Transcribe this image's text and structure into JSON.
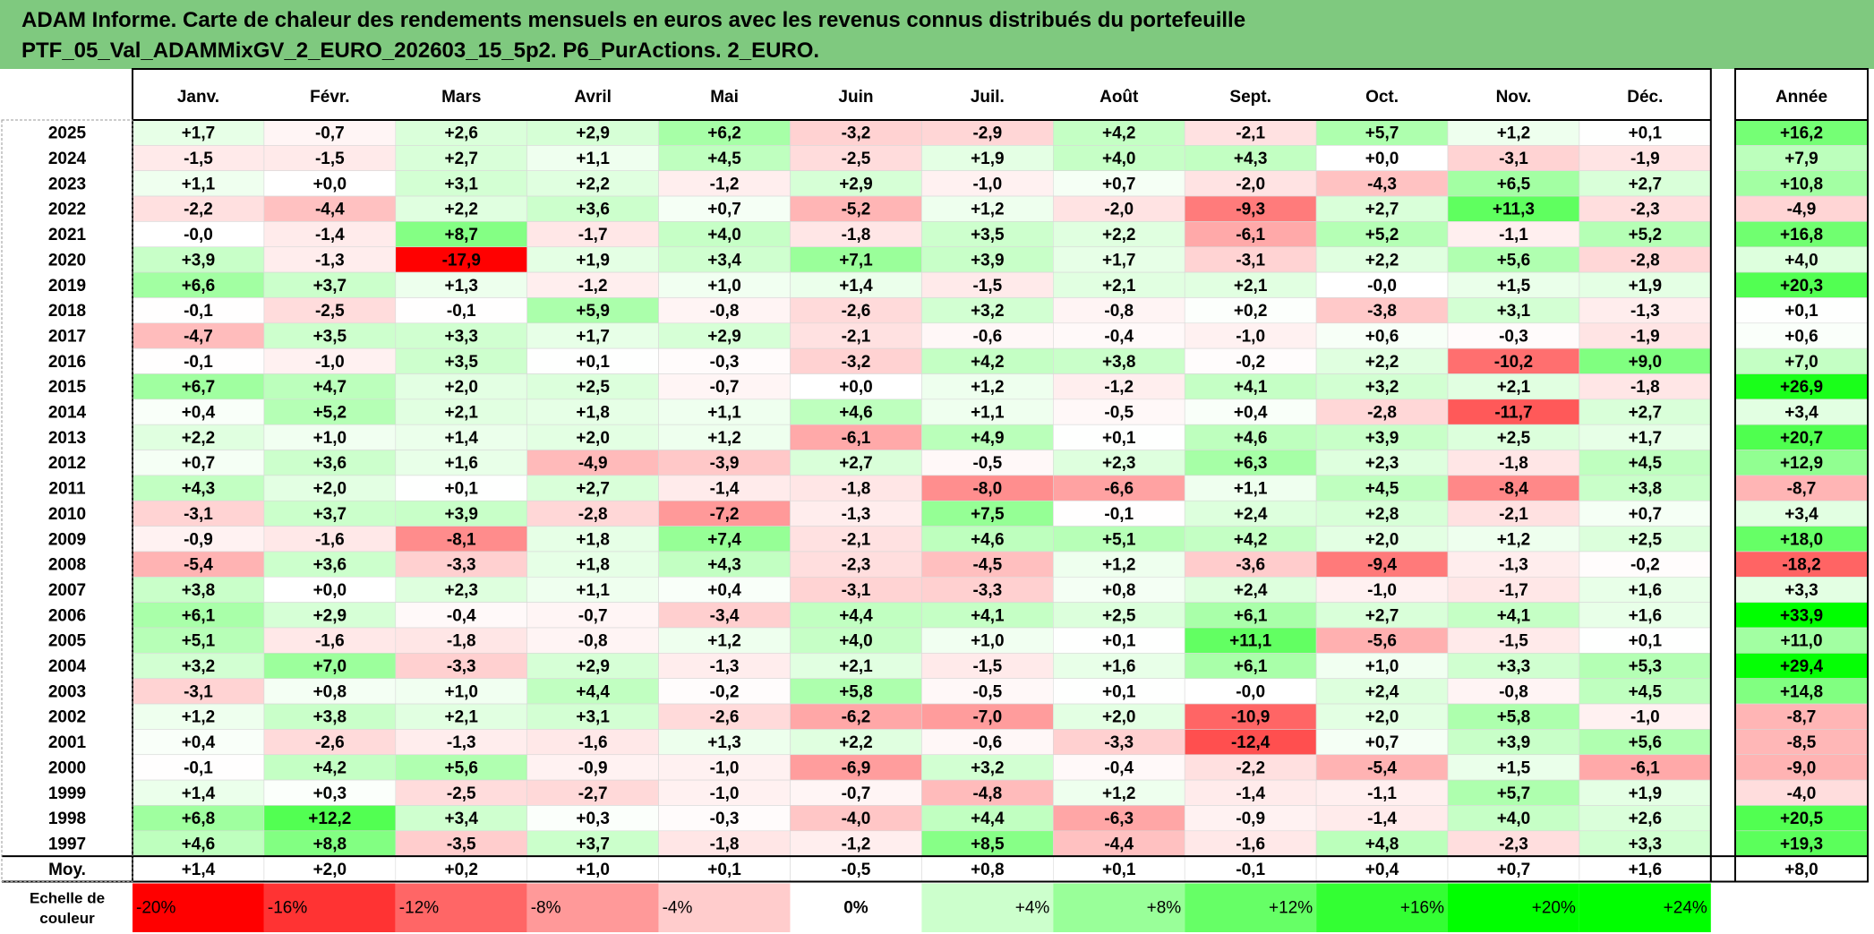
{
  "title": {
    "line1": "ADAM Informe. Carte de chaleur des rendements mensuels en euros avec les revenus connus distribués du portefeuille",
    "line2": "PTF_05_Val_ADAMMixGV_2_EURO_202603_15_5p2. P6_PurActions. 2_EURO."
  },
  "chart_data": {
    "type": "heatmap",
    "columns": [
      "Janv.",
      "Févr.",
      "Mars",
      "Avril",
      "Mai",
      "Juin",
      "Juil.",
      "Août",
      "Sept.",
      "Oct.",
      "Nov.",
      "Déc."
    ],
    "year_column": "Année",
    "rows": [
      {
        "year": "2025",
        "values": [
          "+1,7",
          "-0,7",
          "+2,6",
          "+2,9",
          "+6,2",
          "-3,2",
          "-2,9",
          "+4,2",
          "-2,1",
          "+5,7",
          "+1,2",
          "+0,1"
        ],
        "annual": "+16,2"
      },
      {
        "year": "2024",
        "values": [
          "-1,5",
          "-1,5",
          "+2,7",
          "+1,1",
          "+4,5",
          "-2,5",
          "+1,9",
          "+4,0",
          "+4,3",
          "+0,0",
          "-3,1",
          "-1,9"
        ],
        "annual": "+7,9"
      },
      {
        "year": "2023",
        "values": [
          "+1,1",
          "+0,0",
          "+3,1",
          "+2,2",
          "-1,2",
          "+2,9",
          "-1,0",
          "+0,7",
          "-2,0",
          "-4,3",
          "+6,5",
          "+2,7"
        ],
        "annual": "+10,8"
      },
      {
        "year": "2022",
        "values": [
          "-2,2",
          "-4,4",
          "+2,2",
          "+3,6",
          "+0,7",
          "-5,2",
          "+1,2",
          "-2,0",
          "-9,3",
          "+2,7",
          "+11,3",
          "-2,3"
        ],
        "annual": "-4,9"
      },
      {
        "year": "2021",
        "values": [
          "-0,0",
          "-1,4",
          "+8,7",
          "-1,7",
          "+4,0",
          "-1,8",
          "+3,5",
          "+2,2",
          "-6,1",
          "+5,2",
          "-1,1",
          "+5,2"
        ],
        "annual": "+16,8"
      },
      {
        "year": "2020",
        "values": [
          "+3,9",
          "-1,3",
          "-17,9",
          "+1,9",
          "+3,4",
          "+7,1",
          "+3,9",
          "+1,7",
          "-3,1",
          "+2,2",
          "+5,6",
          "-2,8"
        ],
        "annual": "+4,0"
      },
      {
        "year": "2019",
        "values": [
          "+6,6",
          "+3,7",
          "+1,3",
          "-1,2",
          "+1,0",
          "+1,4",
          "-1,5",
          "+2,1",
          "+2,1",
          "-0,0",
          "+1,5",
          "+1,9"
        ],
        "annual": "+20,3"
      },
      {
        "year": "2018",
        "values": [
          "-0,1",
          "-2,5",
          "-0,1",
          "+5,9",
          "-0,8",
          "-2,6",
          "+3,2",
          "-0,8",
          "+0,2",
          "-3,8",
          "+3,1",
          "-1,3"
        ],
        "annual": "+0,1"
      },
      {
        "year": "2017",
        "values": [
          "-4,7",
          "+3,5",
          "+3,3",
          "+1,7",
          "+2,9",
          "-2,1",
          "-0,6",
          "-0,4",
          "-1,0",
          "+0,6",
          "-0,3",
          "-1,9"
        ],
        "annual": "+0,6"
      },
      {
        "year": "2016",
        "values": [
          "-0,1",
          "-1,0",
          "+3,5",
          "+0,1",
          "-0,3",
          "-3,2",
          "+4,2",
          "+3,8",
          "-0,2",
          "+2,2",
          "-10,2",
          "+9,0"
        ],
        "annual": "+7,0"
      },
      {
        "year": "2015",
        "values": [
          "+6,7",
          "+4,7",
          "+2,0",
          "+2,5",
          "-0,7",
          "+0,0",
          "+1,2",
          "-1,2",
          "+4,1",
          "+3,2",
          "+2,1",
          "-1,8"
        ],
        "annual": "+26,9"
      },
      {
        "year": "2014",
        "values": [
          "+0,4",
          "+5,2",
          "+2,1",
          "+1,8",
          "+1,1",
          "+4,6",
          "+1,1",
          "-0,5",
          "+0,4",
          "-2,8",
          "-11,7",
          "+2,7"
        ],
        "annual": "+3,4"
      },
      {
        "year": "2013",
        "values": [
          "+2,2",
          "+1,0",
          "+1,4",
          "+2,0",
          "+1,2",
          "-6,1",
          "+4,9",
          "+0,1",
          "+4,6",
          "+3,9",
          "+2,5",
          "+1,7"
        ],
        "annual": "+20,7"
      },
      {
        "year": "2012",
        "values": [
          "+0,7",
          "+3,6",
          "+1,6",
          "-4,9",
          "-3,9",
          "+2,7",
          "-0,5",
          "+2,3",
          "+6,3",
          "+2,3",
          "-1,8",
          "+4,5"
        ],
        "annual": "+12,9"
      },
      {
        "year": "2011",
        "values": [
          "+4,3",
          "+2,0",
          "+0,1",
          "+2,7",
          "-1,4",
          "-1,8",
          "-8,0",
          "-6,6",
          "+1,1",
          "+4,5",
          "-8,4",
          "+3,8"
        ],
        "annual": "-8,7"
      },
      {
        "year": "2010",
        "values": [
          "-3,1",
          "+3,7",
          "+3,9",
          "-2,8",
          "-7,2",
          "-1,3",
          "+7,5",
          "-0,1",
          "+2,4",
          "+2,8",
          "-2,1",
          "+0,7"
        ],
        "annual": "+3,4"
      },
      {
        "year": "2009",
        "values": [
          "-0,9",
          "-1,6",
          "-8,1",
          "+1,8",
          "+7,4",
          "-2,1",
          "+4,6",
          "+5,1",
          "+4,2",
          "+2,0",
          "+1,2",
          "+2,5"
        ],
        "annual": "+18,0"
      },
      {
        "year": "2008",
        "values": [
          "-5,4",
          "+3,6",
          "-3,3",
          "+1,8",
          "+4,3",
          "-2,3",
          "-4,5",
          "+1,2",
          "-3,6",
          "-9,4",
          "-1,3",
          "-0,2"
        ],
        "annual": "-18,2"
      },
      {
        "year": "2007",
        "values": [
          "+3,8",
          "+0,0",
          "+2,3",
          "+1,1",
          "+0,4",
          "-3,1",
          "-3,3",
          "+0,8",
          "+2,4",
          "-1,0",
          "-1,7",
          "+1,6"
        ],
        "annual": "+3,3"
      },
      {
        "year": "2006",
        "values": [
          "+6,1",
          "+2,9",
          "-0,4",
          "-0,7",
          "-3,4",
          "+4,4",
          "+4,1",
          "+2,5",
          "+6,1",
          "+2,7",
          "+4,1",
          "+1,6"
        ],
        "annual": "+33,9"
      },
      {
        "year": "2005",
        "values": [
          "+5,1",
          "-1,6",
          "-1,8",
          "-0,8",
          "+1,2",
          "+4,0",
          "+1,0",
          "+0,1",
          "+11,1",
          "-5,6",
          "-1,5",
          "+0,1"
        ],
        "annual": "+11,0"
      },
      {
        "year": "2004",
        "values": [
          "+3,2",
          "+7,0",
          "-3,3",
          "+2,9",
          "-1,3",
          "+2,1",
          "-1,5",
          "+1,6",
          "+6,1",
          "+1,0",
          "+3,3",
          "+5,3"
        ],
        "annual": "+29,4"
      },
      {
        "year": "2003",
        "values": [
          "-3,1",
          "+0,8",
          "+1,0",
          "+4,4",
          "-0,2",
          "+5,8",
          "-0,5",
          "+0,1",
          "-0,0",
          "+2,4",
          "-0,8",
          "+4,5"
        ],
        "annual": "+14,8"
      },
      {
        "year": "2002",
        "values": [
          "+1,2",
          "+3,8",
          "+2,1",
          "+3,1",
          "-2,6",
          "-6,2",
          "-7,0",
          "+2,0",
          "-10,9",
          "+2,0",
          "+5,8",
          "-1,0"
        ],
        "annual": "-8,7"
      },
      {
        "year": "2001",
        "values": [
          "+0,4",
          "-2,6",
          "-1,3",
          "-1,6",
          "+1,3",
          "+2,2",
          "-0,6",
          "-3,3",
          "-12,4",
          "+0,7",
          "+3,9",
          "+5,6"
        ],
        "annual": "-8,5"
      },
      {
        "year": "2000",
        "values": [
          "-0,1",
          "+4,2",
          "+5,6",
          "-0,9",
          "-1,0",
          "-6,9",
          "+3,2",
          "-0,4",
          "-2,2",
          "-5,4",
          "+1,5",
          "-6,1"
        ],
        "annual": "-9,0"
      },
      {
        "year": "1999",
        "values": [
          "+1,4",
          "+0,3",
          "-2,5",
          "-2,7",
          "-1,0",
          "-0,7",
          "-4,8",
          "+1,2",
          "-1,4",
          "-1,1",
          "+5,7",
          "+1,9"
        ],
        "annual": "-4,0"
      },
      {
        "year": "1998",
        "values": [
          "+6,8",
          "+12,2",
          "+3,4",
          "+0,3",
          "-0,3",
          "-4,0",
          "+4,4",
          "-6,3",
          "-0,9",
          "-1,4",
          "+4,0",
          "+2,6"
        ],
        "annual": "+20,5"
      },
      {
        "year": "1997",
        "values": [
          "+4,6",
          "+8,8",
          "-3,5",
          "+3,7",
          "-1,8",
          "-1,2",
          "+8,5",
          "-4,4",
          "-1,6",
          "+4,8",
          "-2,3",
          "+3,3"
        ],
        "annual": "+19,3"
      }
    ],
    "average": {
      "label": "Moy.",
      "values": [
        "+1,4",
        "+2,0",
        "+0,2",
        "+1,0",
        "+0,1",
        "-0,5",
        "+0,8",
        "+0,1",
        "-0,1",
        "+0,4",
        "+0,7",
        "+1,6"
      ],
      "annual": "+8,0"
    },
    "scale": {
      "label_line1": "Echelle de",
      "label_line2": "couleur",
      "steps": [
        "-20%",
        "-16%",
        "-12%",
        "-8%",
        "-4%",
        "0%",
        "+4%",
        "+8%",
        "+12%",
        "+16%",
        "+20%",
        "+24%"
      ],
      "step_values": [
        -20,
        -16,
        -12,
        -8,
        -4,
        0,
        4,
        8,
        12,
        16,
        20,
        24
      ]
    },
    "colors": {
      "negative": "#ff0000",
      "positive": "#00ff00",
      "neutral": "#ffffff",
      "title_background": "#7fc97f"
    }
  }
}
